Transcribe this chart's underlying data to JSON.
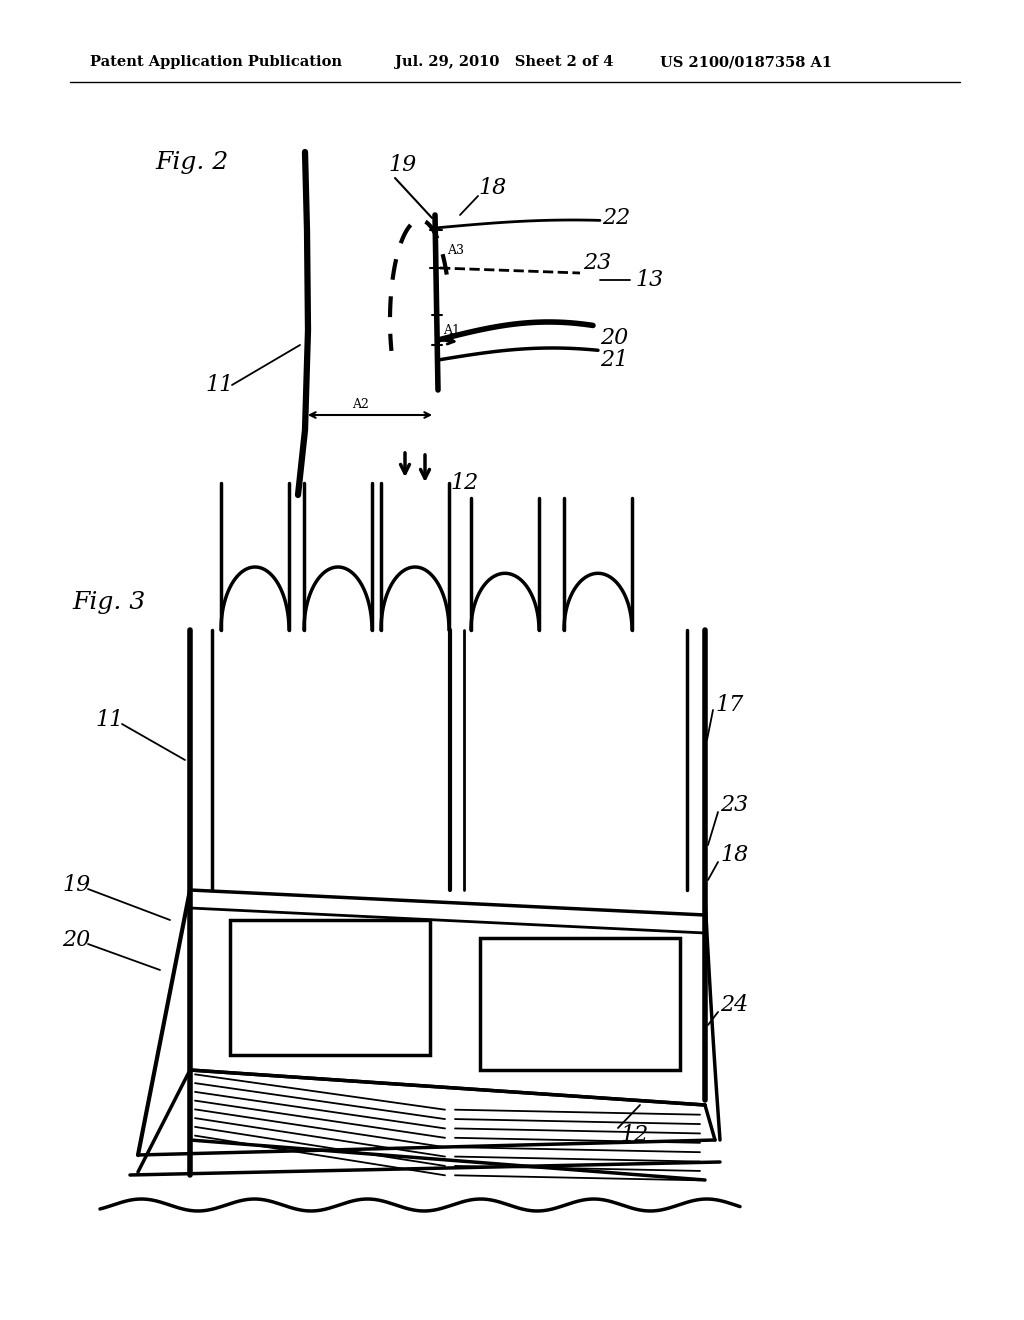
{
  "background_color": "#ffffff",
  "header_text": "Patent Application Publication",
  "header_date": "Jul. 29, 2010",
  "header_sheet": "Sheet 2 of 4",
  "header_patent": "US 2100/0187358 A1",
  "fig2_label": "Fig. 2",
  "fig3_label": "Fig. 3",
  "line_color": "#000000"
}
